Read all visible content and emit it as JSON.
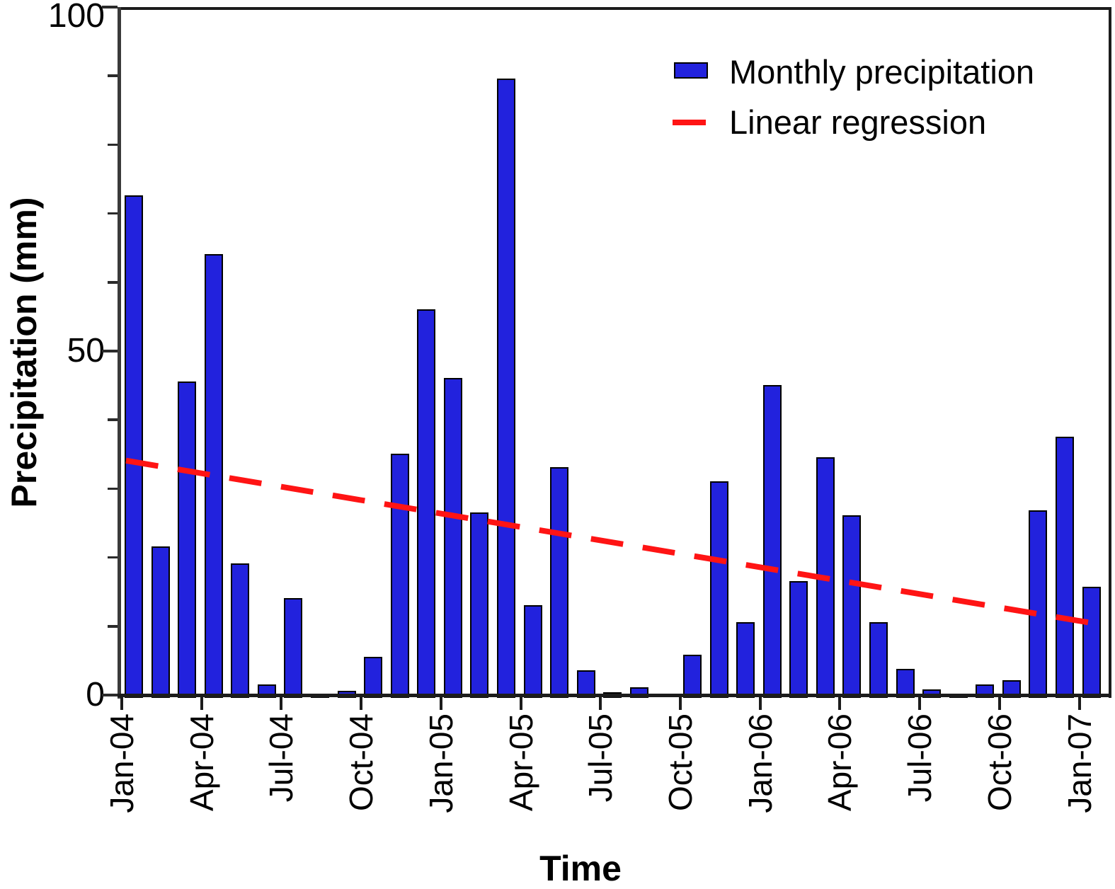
{
  "chart_data": {
    "type": "bar",
    "title": "",
    "xlabel": "Time",
    "ylabel": "Precipitation (mm)",
    "ylim": [
      0,
      100
    ],
    "y_major_ticks": [
      0,
      50,
      100
    ],
    "y_major_tick_labels": [
      "0",
      "50",
      "100"
    ],
    "y_minor_step": 10,
    "grid": "off",
    "legend_position": "top-right",
    "categories": [
      "Jan-04",
      "Feb-04",
      "Mar-04",
      "Apr-04",
      "May-04",
      "Jun-04",
      "Jul-04",
      "Aug-04",
      "Sep-04",
      "Oct-04",
      "Nov-04",
      "Dec-04",
      "Jan-05",
      "Feb-05",
      "Mar-05",
      "Apr-05",
      "May-05",
      "Jun-05",
      "Jul-05",
      "Aug-05",
      "Sep-05",
      "Oct-05",
      "Nov-05",
      "Dec-05",
      "Jan-06",
      "Feb-06",
      "Mar-06",
      "Apr-06",
      "May-06",
      "Jun-06",
      "Jul-06",
      "Aug-06",
      "Sep-06",
      "Oct-06",
      "Nov-06",
      "Dec-06",
      "Jan-07"
    ],
    "series": [
      {
        "name": "Monthly precipitation",
        "values": [
          73,
          22,
          46,
          64.5,
          19.5,
          2,
          14.5,
          0.5,
          1,
          6,
          35.5,
          56.5,
          46.5,
          27,
          90,
          13.5,
          33.5,
          4,
          0.8,
          1.5,
          0,
          6.3,
          31.5,
          11,
          45.5,
          17,
          35,
          26.5,
          11,
          4.2,
          1.2,
          0.4,
          2,
          2.6,
          27.3,
          38,
          16.2
        ]
      }
    ],
    "regression": {
      "name": "Linear regression",
      "value_at_first_month": 34.3,
      "value_at_last_month": 10.9
    },
    "x_labeled_ticks": [
      "Jan-04",
      "Apr-04",
      "Jul-04",
      "Oct-04",
      "Jan-05",
      "Apr-05",
      "Jul-05",
      "Oct-05",
      "Jan-06",
      "Apr-06",
      "Jul-06",
      "Oct-06",
      "Jan-07"
    ],
    "legend": [
      "Monthly precipitation",
      "Linear regression"
    ],
    "colors": {
      "bar_fill": "#2222DD",
      "bar_border": "#000000",
      "regression_line": "#FF1414",
      "axis": "#1c1c1c"
    }
  }
}
